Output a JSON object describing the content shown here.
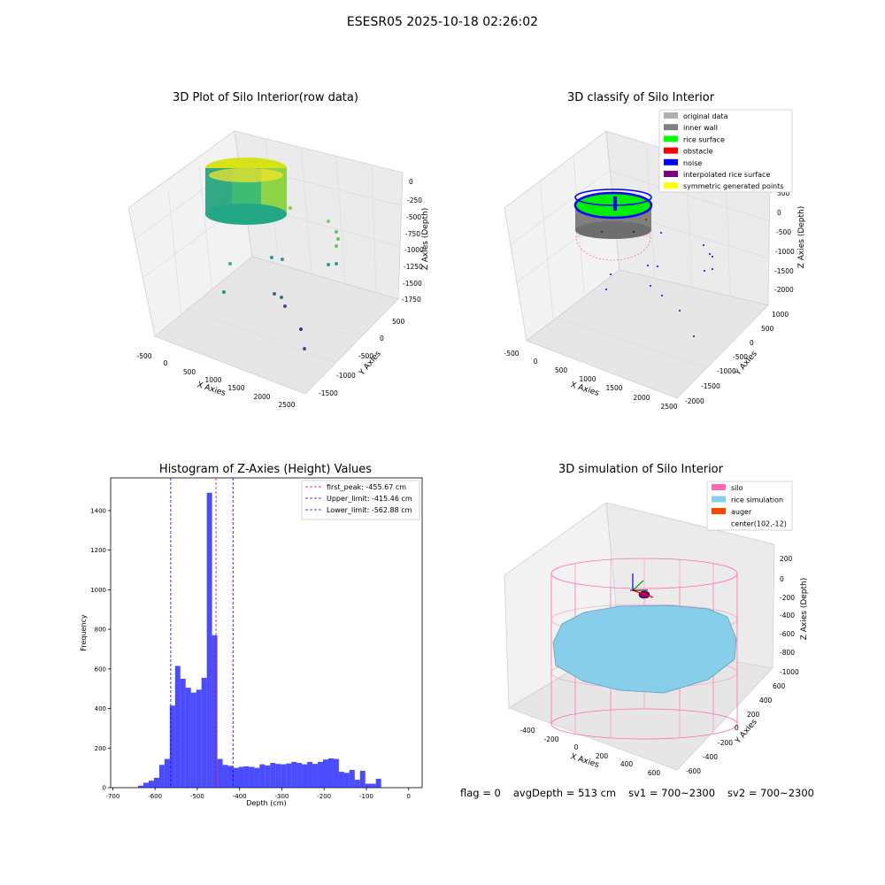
{
  "suptitle": "ESESR05 2025-10-18 02:26:02",
  "panels": {
    "tl": {
      "title": "3D Plot of Silo Interior(row data)",
      "xlabel": "X Axies",
      "ylabel": "Y Axies",
      "zlabel": "Z Axies (Depth)",
      "xticks": [
        "-500",
        "0",
        "500",
        "1000",
        "1500",
        "2000",
        "2500"
      ],
      "yticks": [
        "500",
        "0",
        "-500",
        "-1000",
        "-1500"
      ],
      "zticks": [
        "0",
        "-250",
        "-500",
        "-750",
        "-1000",
        "-1250",
        "-1500",
        "-1750"
      ]
    },
    "tr": {
      "title": "3D classify of Silo Interior",
      "xlabel": "X Axies",
      "ylabel": "Y Axies",
      "zlabel": "Z Axies (Depth)",
      "xticks": [
        "-500",
        "0",
        "500",
        "1000",
        "1500",
        "2000",
        "2500"
      ],
      "yticks": [
        "1000",
        "500",
        "0",
        "-500",
        "-1000",
        "-1500",
        "-2000"
      ],
      "zticks": [
        "500",
        "0",
        "-500",
        "-1000",
        "-1500",
        "-2000"
      ],
      "legend": [
        {
          "label": "original data",
          "color": "#b0b0b0"
        },
        {
          "label": "inner wall",
          "color": "#808080"
        },
        {
          "label": "rice surface",
          "color": "#00ff00"
        },
        {
          "label": "obstacle",
          "color": "#ff0000"
        },
        {
          "label": "noise",
          "color": "#0000ff"
        },
        {
          "label": "interpolated rice surface",
          "color": "#800080"
        },
        {
          "label": "symmetric generated points",
          "color": "#ffff00"
        }
      ]
    },
    "br": {
      "title": "3D simulation of Silo Interior",
      "xlabel": "X Axies",
      "ylabel": "Y Axies",
      "zlabel": "Z Axies (Depth)",
      "xticks": [
        "-400",
        "-200",
        "0",
        "200",
        "400",
        "600"
      ],
      "yticks": [
        "600",
        "400",
        "200",
        "0",
        "-200",
        "-400",
        "-600"
      ],
      "zticks": [
        "200",
        "0",
        "-200",
        "-400",
        "-600",
        "-800",
        "-1000"
      ],
      "legend": [
        {
          "label": "silo",
          "color": "#ff69b4"
        },
        {
          "label": "rice simulation",
          "color": "#87ceeb"
        },
        {
          "label": "auger",
          "color": "#ff4500"
        },
        {
          "label": "center(102,-12)",
          "color": ""
        }
      ]
    }
  },
  "chart_data": {
    "type": "bar",
    "title": "Histogram of Z-Axies (Height) Values",
    "xlabel": "Depth (cm)",
    "ylabel": "Frequency",
    "xlim": [
      -705,
      32
    ],
    "ylim": [
      0,
      1565
    ],
    "xticks": [
      -700,
      -600,
      -500,
      -400,
      -300,
      -200,
      -100,
      0
    ],
    "yticks": [
      0,
      200,
      400,
      600,
      800,
      1000,
      1200,
      1400
    ],
    "bin_start": -640,
    "bin_width": 12.5,
    "color": "#0000ff",
    "values": [
      10,
      25,
      35,
      50,
      115,
      145,
      415,
      615,
      550,
      505,
      480,
      495,
      555,
      1490,
      770,
      145,
      115,
      110,
      100,
      105,
      108,
      105,
      100,
      118,
      112,
      125,
      120,
      118,
      122,
      130,
      125,
      118,
      130,
      120,
      130,
      142,
      148,
      145,
      80,
      75,
      90,
      40,
      85,
      20,
      20,
      45
    ],
    "lines": [
      {
        "label": "first_peak: -455.67 cm",
        "x": -455.67,
        "color": "#ff0000"
      },
      {
        "label": "Upper_limit: -415.46 cm",
        "x": -415.46,
        "color": "#0000ff"
      },
      {
        "label": "Lower_limit: -562.88 cm",
        "x": -562.88,
        "color": "#0000ff"
      }
    ]
  },
  "footer": {
    "flag": "flag = 0",
    "avg_depth": "avgDepth = 513 cm",
    "sv1": "sv1 = 700~2300",
    "sv2": "sv2 = 700~2300"
  }
}
